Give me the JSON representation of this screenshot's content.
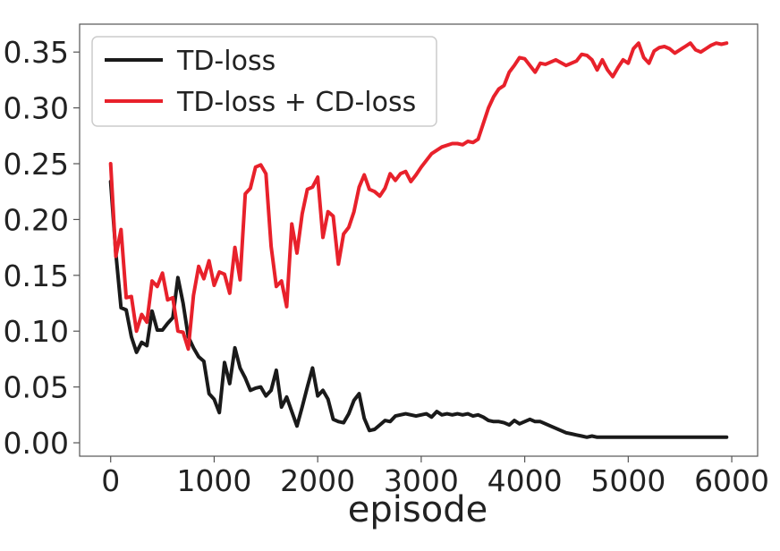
{
  "chart_data": {
    "type": "line",
    "title": "",
    "xlabel": "episode",
    "ylabel": "",
    "xlim": [
      -300,
      6250
    ],
    "ylim": [
      -0.012,
      0.375
    ],
    "x_ticks": [
      0,
      1000,
      2000,
      3000,
      4000,
      5000,
      6000
    ],
    "x_tick_labels": [
      "0",
      "1000",
      "2000",
      "3000",
      "4000",
      "5000",
      "6000"
    ],
    "y_ticks": [
      0.0,
      0.05,
      0.1,
      0.15,
      0.2,
      0.25,
      0.3,
      0.35
    ],
    "y_tick_labels": [
      "0.00",
      "0.05",
      "0.10",
      "0.15",
      "0.20",
      "0.25",
      "0.30",
      "0.35"
    ],
    "grid": false,
    "legend_position": "top-left",
    "series": [
      {
        "name": "TD-loss",
        "color": "#1a1a1a",
        "x": [
          0,
          50,
          100,
          150,
          200,
          250,
          300,
          350,
          400,
          450,
          500,
          550,
          600,
          650,
          700,
          750,
          800,
          850,
          900,
          950,
          1000,
          1050,
          1100,
          1150,
          1200,
          1250,
          1300,
          1350,
          1400,
          1450,
          1500,
          1550,
          1600,
          1650,
          1700,
          1750,
          1800,
          1850,
          1900,
          1950,
          2000,
          2050,
          2100,
          2150,
          2200,
          2250,
          2300,
          2350,
          2400,
          2450,
          2500,
          2550,
          2600,
          2650,
          2700,
          2750,
          2800,
          2850,
          2900,
          2950,
          3000,
          3050,
          3100,
          3150,
          3200,
          3250,
          3300,
          3350,
          3400,
          3450,
          3500,
          3550,
          3600,
          3650,
          3700,
          3750,
          3800,
          3850,
          3900,
          3950,
          4000,
          4050,
          4100,
          4150,
          4200,
          4250,
          4300,
          4350,
          4400,
          4450,
          4500,
          4550,
          4600,
          4650,
          4700,
          4750,
          4800,
          4850,
          4900,
          4950,
          5000,
          5100,
          5200,
          5300,
          5400,
          5500,
          5600,
          5700,
          5800,
          5850,
          5900,
          5950
        ],
        "values": [
          0.234,
          0.17,
          0.121,
          0.119,
          0.095,
          0.081,
          0.09,
          0.087,
          0.118,
          0.101,
          0.101,
          0.107,
          0.112,
          0.148,
          0.125,
          0.095,
          0.085,
          0.077,
          0.073,
          0.044,
          0.039,
          0.027,
          0.072,
          0.053,
          0.085,
          0.067,
          0.058,
          0.047,
          0.049,
          0.05,
          0.042,
          0.047,
          0.065,
          0.032,
          0.041,
          0.028,
          0.015,
          0.032,
          0.05,
          0.067,
          0.042,
          0.047,
          0.039,
          0.021,
          0.019,
          0.018,
          0.026,
          0.038,
          0.044,
          0.022,
          0.011,
          0.012,
          0.016,
          0.02,
          0.019,
          0.024,
          0.025,
          0.026,
          0.025,
          0.024,
          0.025,
          0.026,
          0.023,
          0.028,
          0.025,
          0.026,
          0.025,
          0.026,
          0.025,
          0.026,
          0.024,
          0.025,
          0.023,
          0.02,
          0.019,
          0.019,
          0.018,
          0.016,
          0.02,
          0.017,
          0.019,
          0.021,
          0.019,
          0.019,
          0.017,
          0.015,
          0.013,
          0.011,
          0.009,
          0.008,
          0.007,
          0.006,
          0.005,
          0.006,
          0.005,
          0.005,
          0.005,
          0.005,
          0.005,
          0.005,
          0.005,
          0.005,
          0.005,
          0.005,
          0.005,
          0.005,
          0.005,
          0.005,
          0.005,
          0.005,
          0.005,
          0.005
        ]
      },
      {
        "name": "TD-loss + CD-loss",
        "color": "#e8212b",
        "x": [
          0,
          50,
          100,
          150,
          200,
          250,
          300,
          350,
          400,
          450,
          500,
          550,
          600,
          650,
          700,
          750,
          800,
          850,
          900,
          950,
          1000,
          1050,
          1100,
          1150,
          1200,
          1250,
          1300,
          1350,
          1400,
          1450,
          1500,
          1550,
          1600,
          1650,
          1700,
          1750,
          1800,
          1850,
          1900,
          1950,
          2000,
          2050,
          2100,
          2150,
          2200,
          2250,
          2300,
          2350,
          2400,
          2450,
          2500,
          2550,
          2600,
          2650,
          2700,
          2750,
          2800,
          2850,
          2900,
          2950,
          3000,
          3100,
          3200,
          3300,
          3350,
          3400,
          3450,
          3500,
          3550,
          3600,
          3650,
          3700,
          3750,
          3800,
          3850,
          3900,
          3950,
          4000,
          4050,
          4100,
          4150,
          4200,
          4300,
          4400,
          4500,
          4550,
          4600,
          4650,
          4700,
          4750,
          4800,
          4850,
          4900,
          4950,
          5000,
          5050,
          5100,
          5150,
          5200,
          5250,
          5300,
          5350,
          5400,
          5450,
          5500,
          5550,
          5600,
          5650,
          5700,
          5750,
          5800,
          5850,
          5900,
          5950
        ],
        "values": [
          0.25,
          0.167,
          0.191,
          0.13,
          0.131,
          0.1,
          0.115,
          0.108,
          0.145,
          0.14,
          0.152,
          0.128,
          0.13,
          0.1,
          0.099,
          0.084,
          0.132,
          0.158,
          0.147,
          0.163,
          0.141,
          0.153,
          0.151,
          0.134,
          0.175,
          0.146,
          0.223,
          0.228,
          0.247,
          0.249,
          0.241,
          0.176,
          0.14,
          0.145,
          0.122,
          0.196,
          0.17,
          0.205,
          0.227,
          0.229,
          0.238,
          0.184,
          0.207,
          0.203,
          0.16,
          0.187,
          0.193,
          0.207,
          0.229,
          0.24,
          0.227,
          0.225,
          0.221,
          0.228,
          0.241,
          0.235,
          0.241,
          0.243,
          0.234,
          0.24,
          0.247,
          0.259,
          0.265,
          0.268,
          0.268,
          0.267,
          0.27,
          0.269,
          0.272,
          0.286,
          0.3,
          0.31,
          0.317,
          0.32,
          0.332,
          0.338,
          0.345,
          0.344,
          0.338,
          0.332,
          0.34,
          0.339,
          0.343,
          0.338,
          0.342,
          0.348,
          0.347,
          0.343,
          0.334,
          0.343,
          0.334,
          0.328,
          0.336,
          0.343,
          0.34,
          0.353,
          0.358,
          0.345,
          0.34,
          0.351,
          0.354,
          0.355,
          0.353,
          0.349,
          0.352,
          0.355,
          0.358,
          0.352,
          0.35,
          0.353,
          0.356,
          0.358,
          0.357,
          0.358
        ]
      }
    ]
  }
}
